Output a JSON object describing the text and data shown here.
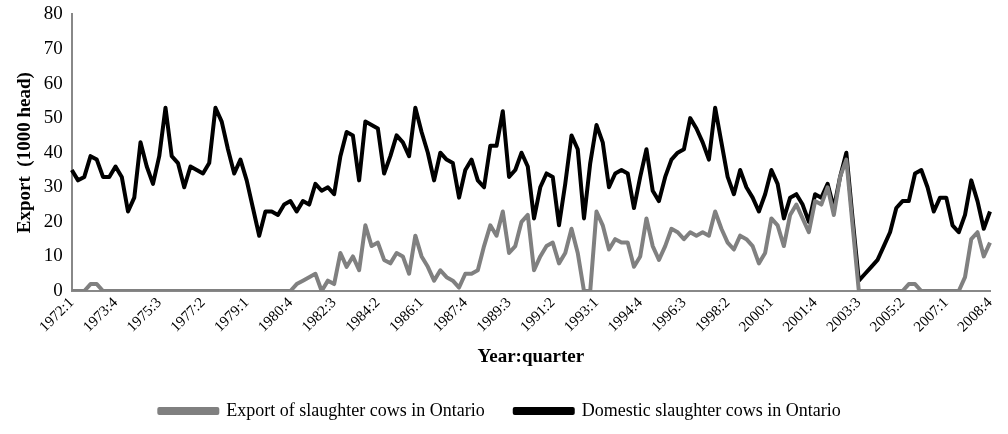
{
  "chart_data": {
    "type": "line",
    "xlabel": "Year:quarter",
    "ylabel": "Export  (1000 head)",
    "categories": [
      "1972:1",
      null,
      null,
      null,
      null,
      null,
      null,
      "1973:4",
      null,
      null,
      null,
      null,
      null,
      null,
      "1975:3",
      null,
      null,
      null,
      null,
      null,
      null,
      "1977:2",
      null,
      null,
      null,
      null,
      null,
      null,
      "1979:1",
      null,
      null,
      null,
      null,
      null,
      null,
      "1980:4",
      null,
      null,
      null,
      null,
      null,
      null,
      "1982:3",
      null,
      null,
      null,
      null,
      null,
      null,
      "1984:2",
      null,
      null,
      null,
      null,
      null,
      null,
      "1986:1",
      null,
      null,
      null,
      null,
      null,
      null,
      "1987:4",
      null,
      null,
      null,
      null,
      null,
      null,
      "1989:3",
      null,
      null,
      null,
      null,
      null,
      null,
      "1991:2",
      null,
      null,
      null,
      null,
      null,
      null,
      "1993:1",
      null,
      null,
      null,
      null,
      null,
      null,
      "1994:4",
      null,
      null,
      null,
      null,
      null,
      null,
      "1996:3",
      null,
      null,
      null,
      null,
      null,
      null,
      "1998:2",
      null,
      null,
      null,
      null,
      null,
      null,
      "2000:1",
      null,
      null,
      null,
      null,
      null,
      null,
      "2001:4",
      null,
      null,
      null,
      null,
      null,
      null,
      "2003:3",
      null,
      null,
      null,
      null,
      null,
      null,
      "2005:2",
      null,
      null,
      null,
      null,
      null,
      null,
      "2007:1",
      null,
      null,
      null,
      null,
      null,
      null,
      "2008:4"
    ],
    "series": [
      {
        "name": "Export of slaughter cows in Ontario",
        "color": "#808080",
        "values": [
          0,
          0,
          0,
          2,
          2,
          0,
          0,
          0,
          0,
          0,
          0,
          0,
          0,
          0,
          0,
          0,
          0,
          0,
          0,
          0,
          0,
          0,
          0,
          0,
          0,
          0,
          0,
          0,
          0,
          0,
          0,
          0,
          0,
          0,
          0,
          0,
          2,
          3,
          4,
          5,
          0,
          3,
          2,
          11,
          7,
          10,
          6,
          19,
          13,
          14,
          9,
          8,
          11,
          10,
          5,
          16,
          10,
          7,
          3,
          6,
          4,
          3,
          1,
          5,
          5,
          6,
          13,
          19,
          16,
          23,
          11,
          13,
          20,
          22,
          6,
          10,
          13,
          14,
          8,
          11,
          18,
          11,
          0,
          0,
          23,
          19,
          12,
          15,
          14,
          14,
          7,
          10,
          21,
          13,
          9,
          13,
          18,
          17,
          15,
          17,
          16,
          17,
          16,
          23,
          18,
          14,
          12,
          16,
          15,
          13,
          8,
          11,
          21,
          19,
          13,
          22,
          25,
          21,
          17,
          26,
          25,
          30,
          22,
          33,
          38,
          19,
          0,
          0,
          0,
          0,
          0,
          0,
          0,
          0,
          2,
          2,
          0,
          0,
          0,
          0,
          0,
          0,
          0,
          4,
          15,
          17,
          10,
          14
        ]
      },
      {
        "name": "Domestic slaughter cows in Ontario",
        "color": "#000000",
        "values": [
          35,
          32,
          33,
          39,
          38,
          33,
          33,
          36,
          33,
          23,
          27,
          43,
          36,
          31,
          39,
          53,
          39,
          37,
          30,
          36,
          35,
          34,
          37,
          53,
          49,
          41,
          34,
          38,
          32,
          24,
          16,
          23,
          23,
          22,
          25,
          26,
          23,
          26,
          25,
          31,
          29,
          30,
          28,
          39,
          46,
          45,
          32,
          49,
          48,
          47,
          34,
          39,
          45,
          43,
          39,
          53,
          46,
          40,
          32,
          40,
          38,
          37,
          27,
          35,
          38,
          32,
          30,
          42,
          42,
          52,
          33,
          35,
          40,
          36,
          21,
          30,
          34,
          33,
          19,
          31,
          45,
          41,
          21,
          37,
          48,
          43,
          30,
          34,
          35,
          34,
          24,
          33,
          41,
          29,
          26,
          33,
          38,
          40,
          41,
          50,
          47,
          43,
          38,
          53,
          43,
          33,
          28,
          35,
          30,
          27,
          23,
          28,
          35,
          31,
          21,
          27,
          28,
          25,
          20,
          28,
          27,
          31,
          24,
          33,
          40,
          21,
          3,
          5,
          7,
          9,
          13,
          17,
          24,
          26,
          26,
          34,
          35,
          30,
          23,
          27,
          27,
          19,
          17,
          22,
          32,
          26,
          18,
          23
        ]
      }
    ],
    "ylim": [
      0,
      80
    ],
    "yticks": [
      0,
      10,
      20,
      30,
      40,
      50,
      60,
      70,
      80
    ],
    "legend": "bottom",
    "grid": false,
    "marker": "none",
    "line_style": "solid"
  }
}
